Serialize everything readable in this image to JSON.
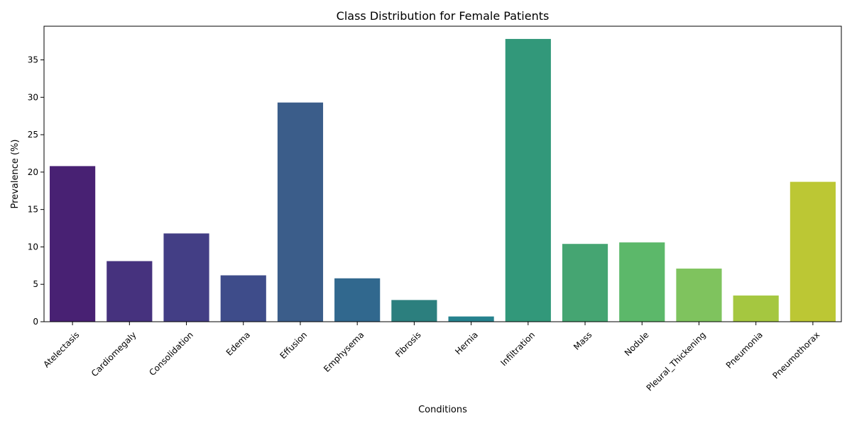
{
  "chart_data": {
    "type": "bar",
    "title": "Class Distribution for Female Patients",
    "xlabel": "Conditions",
    "ylabel": "Prevalence (%)",
    "ylim": [
      0,
      39.5
    ],
    "yticks": [
      0,
      5,
      10,
      15,
      20,
      25,
      30,
      35
    ],
    "grid": false,
    "categories": [
      "Atelectasis",
      "Cardiomegaly",
      "Consolidation",
      "Edema",
      "Effusion",
      "Emphysema",
      "Fibrosis",
      "Hernia",
      "Infiltration",
      "Mass",
      "Nodule",
      "Pleural_Thickening",
      "Pneumonia",
      "Pneumothorax"
    ],
    "values": [
      20.8,
      8.1,
      11.8,
      6.2,
      29.3,
      5.8,
      2.9,
      0.7,
      37.8,
      10.4,
      10.6,
      7.1,
      3.5,
      18.7
    ],
    "colors": [
      "#482173",
      "#46327e",
      "#433e85",
      "#3e4c8a",
      "#3b5d8a",
      "#31688e",
      "#2c7f7e",
      "#26828e",
      "#32987a",
      "#45a572",
      "#5cb86a",
      "#7fc35e",
      "#a5c740",
      "#bcc734"
    ]
  }
}
